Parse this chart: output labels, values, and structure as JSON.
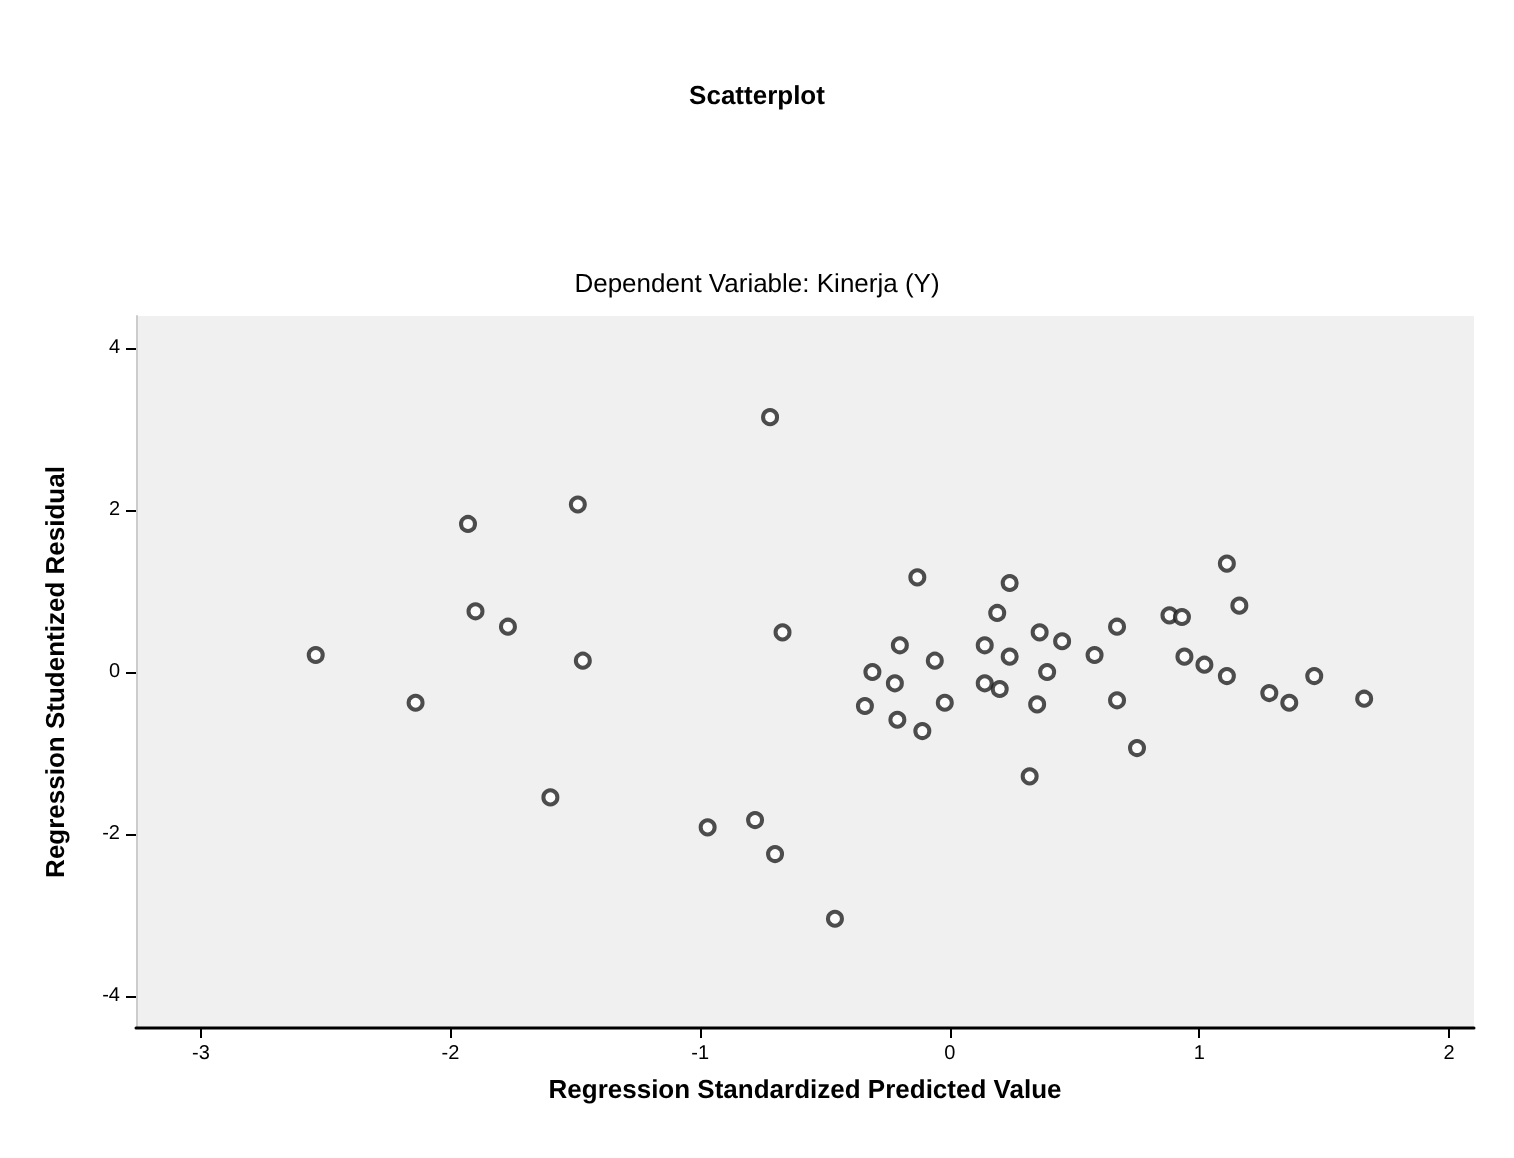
{
  "chart_data": {
    "type": "scatter",
    "title": "Scatterplot",
    "subtitle": "Dependent Variable: Kinerja (Y)",
    "xlabel": "Regression Standardized Predicted Value",
    "ylabel": "Regression Studentized Residual",
    "xlim": [
      -3.26,
      2.1
    ],
    "ylim": [
      -4.4,
      4.4
    ],
    "xticks": [
      -3,
      -2,
      -1,
      0,
      1,
      2
    ],
    "yticks": [
      -4,
      -2,
      0,
      2,
      4
    ],
    "grid": false,
    "marker": "circle",
    "series": [
      {
        "color": "#222222",
        "x": [
          -0.72,
          -1.49,
          -1.93,
          -1.9,
          -1.77,
          -2.54,
          -1.47,
          -0.67,
          -2.14,
          -1.6,
          -0.97,
          -0.78,
          -0.7,
          -0.46,
          -0.13,
          0.24,
          0.19,
          1.11,
          1.16,
          0.67,
          0.88,
          0.93,
          -0.2,
          -0.06,
          0.14,
          0.36,
          0.45,
          0.24,
          0.58,
          0.39,
          -0.31,
          -0.22,
          0.14,
          0.2,
          0.94,
          1.02,
          1.11,
          1.46,
          1.28,
          1.36,
          1.66,
          -0.34,
          -0.21,
          -0.11,
          -0.02,
          0.35,
          0.67,
          0.75,
          0.32
        ],
        "values": [
          3.15,
          2.07,
          1.83,
          0.75,
          0.56,
          0.21,
          0.14,
          0.49,
          -0.38,
          -1.55,
          -1.92,
          -1.83,
          -2.25,
          -3.05,
          1.17,
          1.1,
          0.73,
          1.34,
          0.82,
          0.56,
          0.7,
          0.68,
          0.33,
          0.14,
          0.33,
          0.49,
          0.38,
          0.19,
          0.21,
          0,
          0,
          -0.14,
          -0.14,
          -0.21,
          0.19,
          0.09,
          -0.05,
          -0.05,
          -0.26,
          -0.38,
          -0.33,
          -0.42,
          -0.59,
          -0.73,
          -0.38,
          -0.4,
          -0.35,
          -0.94,
          -1.29
        ]
      }
    ]
  }
}
